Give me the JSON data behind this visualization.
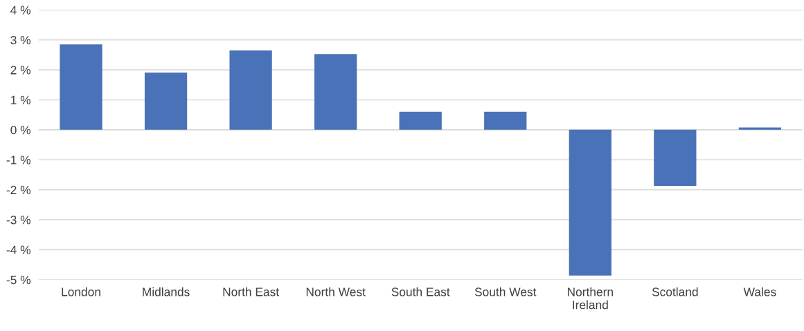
{
  "chart_data": {
    "type": "bar",
    "categories": [
      "London",
      "Midlands",
      "North East",
      "North West",
      "South East",
      "South West",
      "Northern\nIreland",
      "Scotland",
      "Wales"
    ],
    "values": [
      2.85,
      1.91,
      2.65,
      2.53,
      0.6,
      0.6,
      -4.86,
      -1.87,
      0.08
    ],
    "color": "#4a72b8",
    "ylim": [
      -5,
      4
    ],
    "yticks": [
      {
        "value": -5,
        "label": "-5 %"
      },
      {
        "value": -4,
        "label": "-4 %"
      },
      {
        "value": -3,
        "label": "-3 %"
      },
      {
        "value": -2,
        "label": "-2 %"
      },
      {
        "value": -1,
        "label": "-1 %"
      },
      {
        "value": 0,
        "label": "0 %"
      },
      {
        "value": 1,
        "label": "1 %"
      },
      {
        "value": 2,
        "label": "2 %"
      },
      {
        "value": 3,
        "label": "3 %"
      },
      {
        "value": 4,
        "label": "4 %"
      }
    ],
    "grid": "y"
  }
}
